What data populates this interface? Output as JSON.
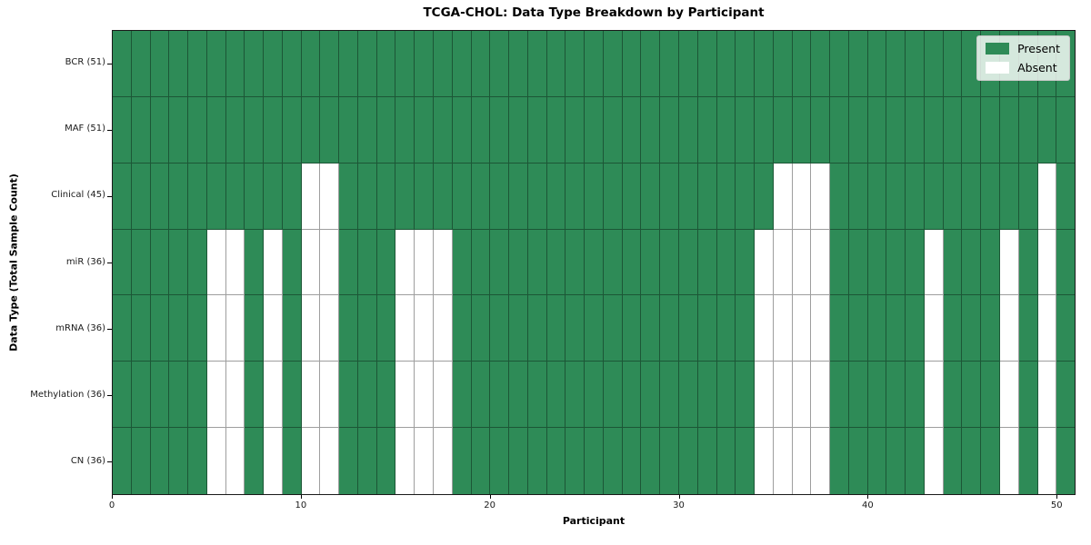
{
  "title": "TCGA-CHOL: Data Type Breakdown by Participant",
  "xlabel": "Participant",
  "ylabel": "Data Type (Total Sample Count)",
  "legend": {
    "present_label": "Present",
    "absent_label": "Absent"
  },
  "colors": {
    "present": "#2e8b57",
    "absent": "#ffffff",
    "grid": "rgba(0,0,0,0.38)",
    "spine": "#1a1a1a"
  },
  "chart_data": {
    "type": "heatmap",
    "title": "TCGA-CHOL: Data Type Breakdown by Participant",
    "xlabel": "Participant",
    "ylabel": "Data Type (Total Sample Count)",
    "legend_entries": [
      "Present",
      "Absent"
    ],
    "legend_position": "upper right",
    "n_participants": 51,
    "x_ticks": [
      0,
      10,
      20,
      30,
      40,
      50
    ],
    "cell_values": {
      "present": 1,
      "absent": 0
    },
    "rows": [
      {
        "name": "BCR",
        "label": "BCR (51)",
        "total": 51,
        "absent_participants": []
      },
      {
        "name": "MAF",
        "label": "MAF (51)",
        "total": 51,
        "absent_participants": []
      },
      {
        "name": "Clinical",
        "label": "Clinical (45)",
        "total": 45,
        "absent_participants": [
          10,
          11,
          35,
          36,
          37,
          49
        ]
      },
      {
        "name": "miR",
        "label": "miR (36)",
        "total": 36,
        "absent_participants": [
          5,
          6,
          8,
          10,
          11,
          15,
          16,
          17,
          34,
          35,
          36,
          37,
          43,
          47,
          49
        ]
      },
      {
        "name": "mRNA",
        "label": "mRNA (36)",
        "total": 36,
        "absent_participants": [
          5,
          6,
          8,
          10,
          11,
          15,
          16,
          17,
          34,
          35,
          36,
          37,
          43,
          47,
          49
        ]
      },
      {
        "name": "Methylation",
        "label": "Methylation (36)",
        "total": 36,
        "absent_participants": [
          5,
          6,
          8,
          10,
          11,
          15,
          16,
          17,
          34,
          35,
          36,
          37,
          43,
          47,
          49
        ]
      },
      {
        "name": "CN",
        "label": "CN (36)",
        "total": 36,
        "absent_participants": [
          5,
          6,
          8,
          10,
          11,
          15,
          16,
          17,
          34,
          35,
          36,
          37,
          43,
          47,
          49
        ]
      }
    ]
  }
}
